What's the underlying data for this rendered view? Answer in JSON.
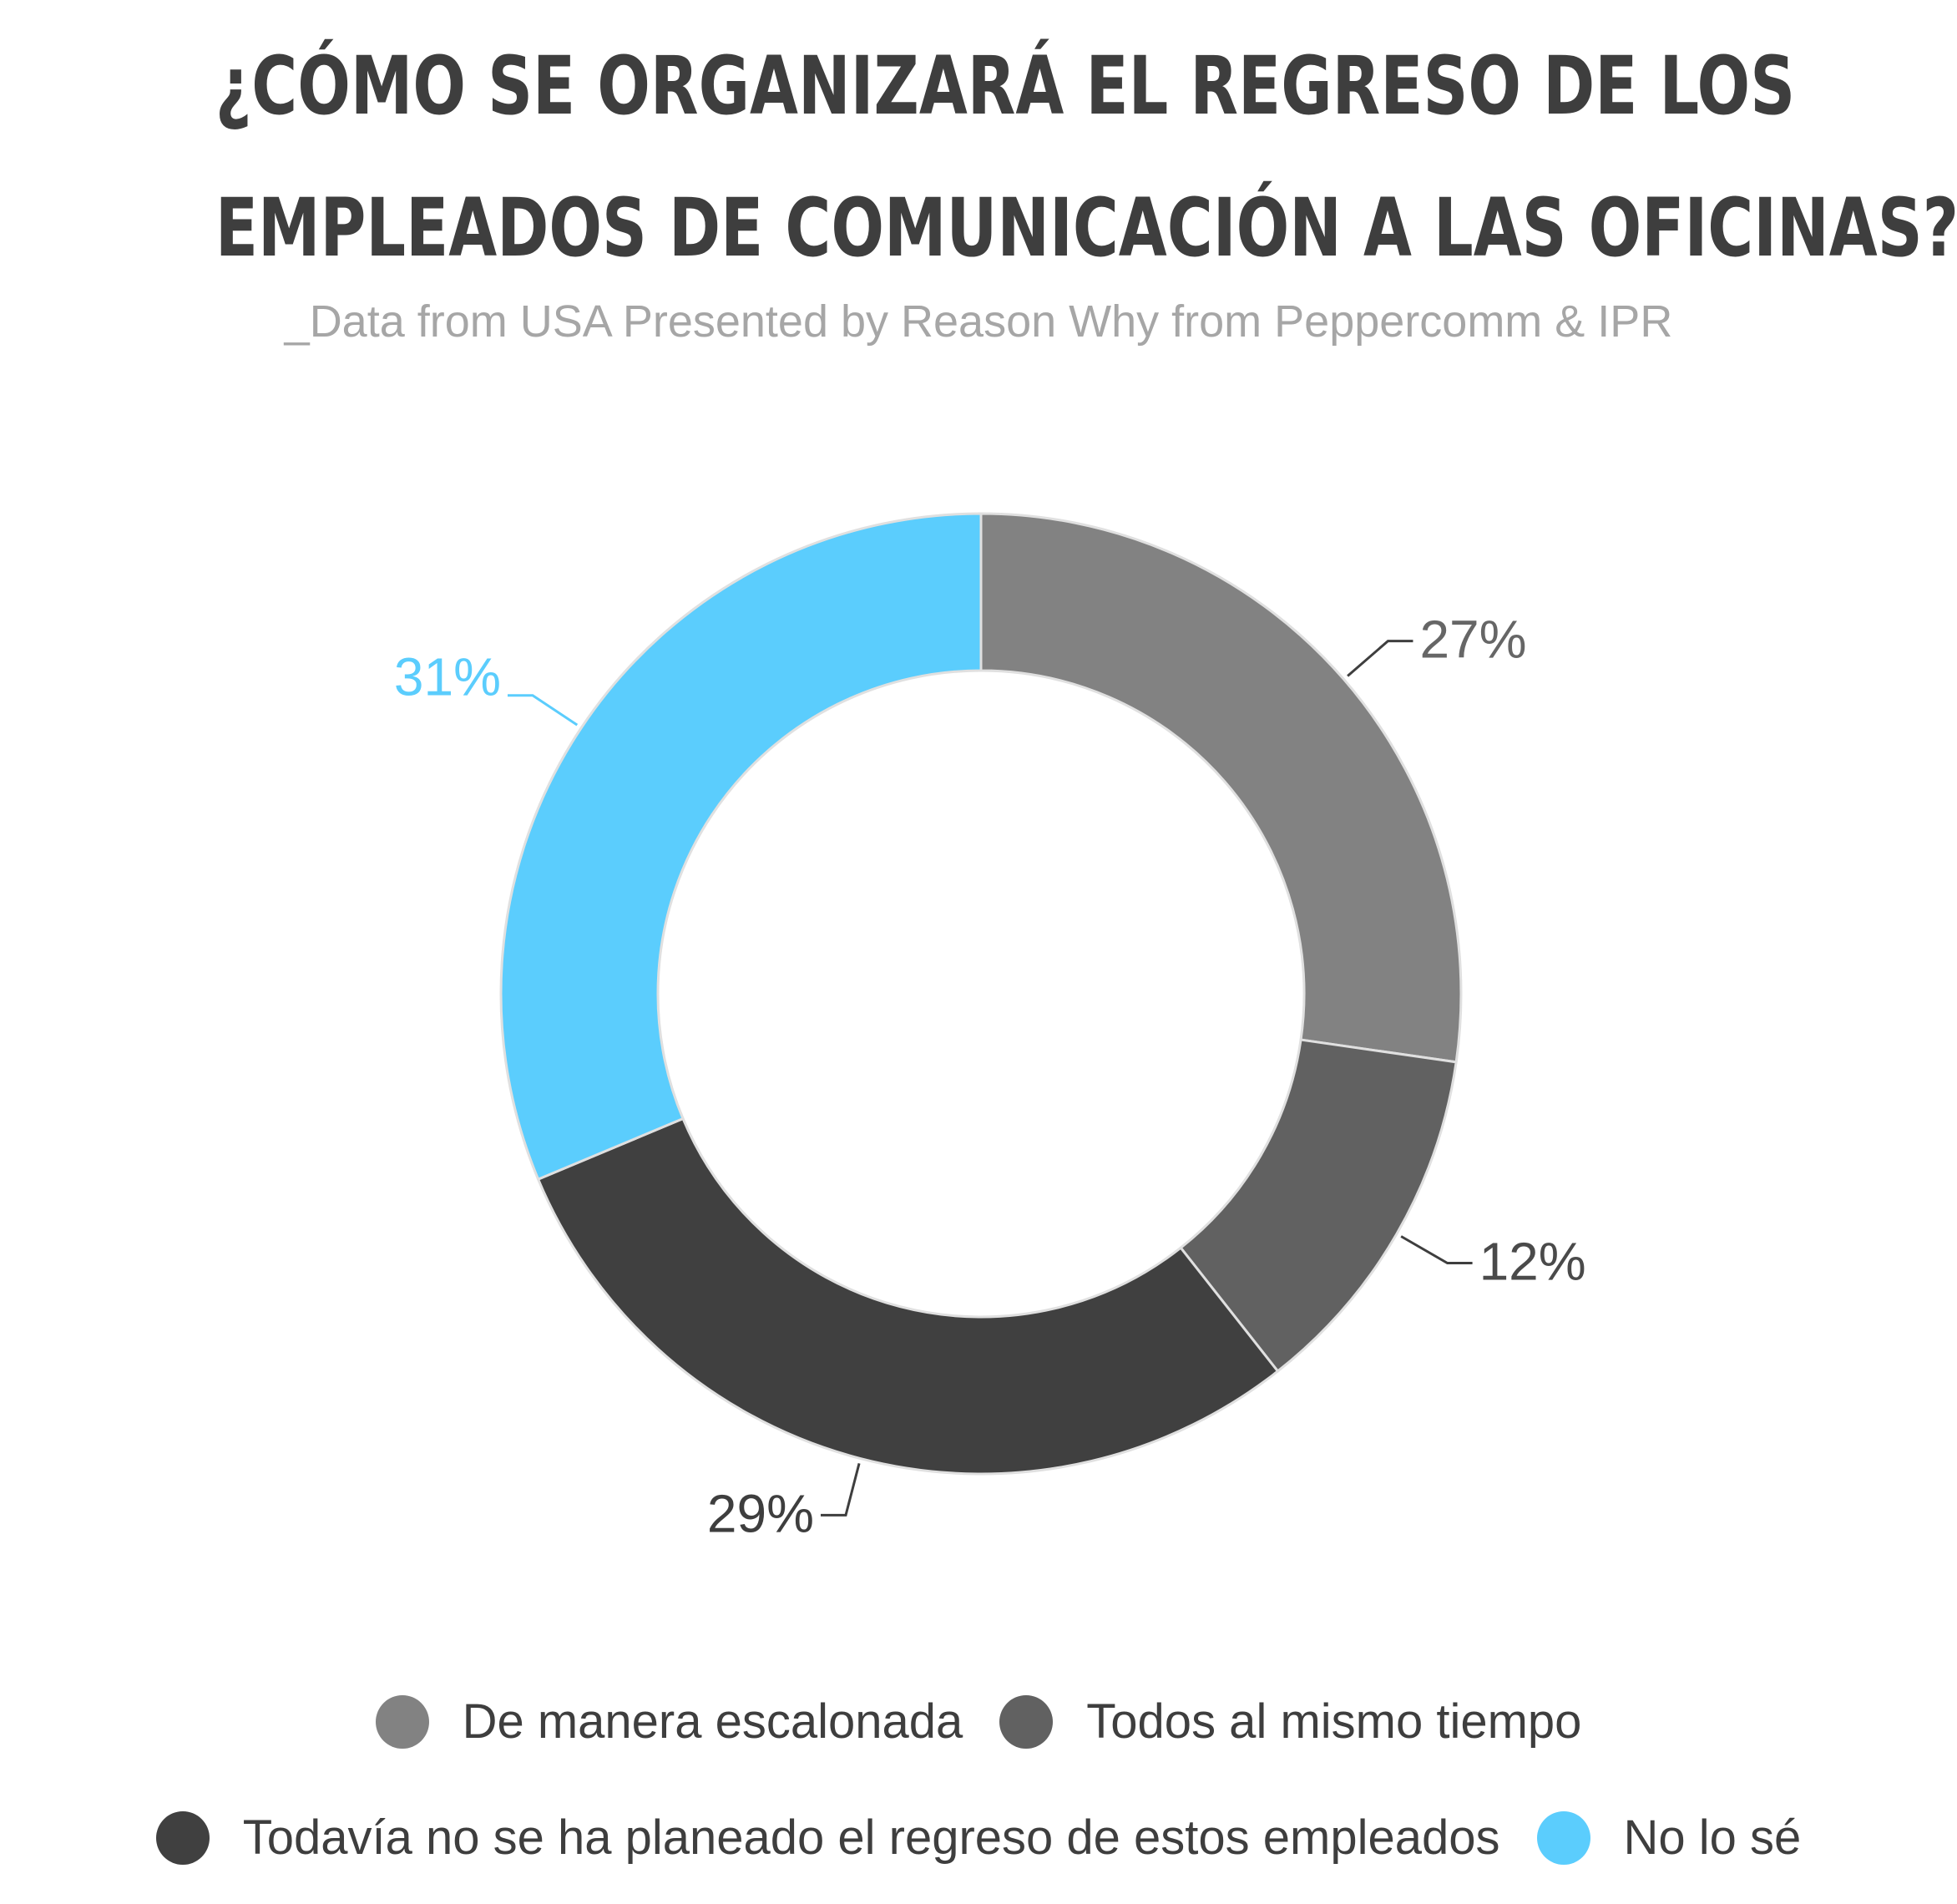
{
  "chart_data": {
    "type": "pie",
    "title_lines": [
      "¿CÓMO SE ORGANIZARÁ EL REGRESO DE LOS",
      "EMPLEADOS DE COMUNICACIÓN A LAS OFICINAS?"
    ],
    "subtitle": "_Data from USA Presented by Reason Why from Peppercomm & IPR",
    "donut": true,
    "slices": [
      {
        "label": "De manera escalonada",
        "value": 27,
        "display": "27%",
        "color": "#828282"
      },
      {
        "label": "Todos al mismo tiempo",
        "value": 12,
        "display": "12%",
        "color": "#616161"
      },
      {
        "label": "Todavía no se ha planeado el regreso de estos empleados",
        "value": 29,
        "display": "29%",
        "color": "#404040"
      },
      {
        "label": "No lo sé",
        "value": 31,
        "display": "31%",
        "color": "#5bcdfd"
      }
    ],
    "legend_position": "bottom"
  }
}
